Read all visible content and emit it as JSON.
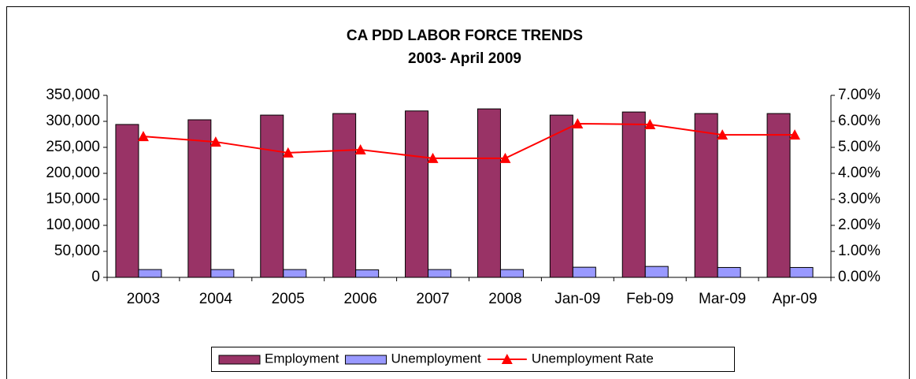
{
  "chart_data": {
    "type": "bar",
    "title": "CA PDD LABOR FORCE TRENDS",
    "subtitle": "2003- April  2009",
    "categories": [
      "2003",
      "2004",
      "2005",
      "2006",
      "2007",
      "2008",
      "Jan-09",
      "Feb-09",
      "Mar-09",
      "Apr-09"
    ],
    "series": [
      {
        "name": "Employment",
        "color": "#993366",
        "values": [
          294000,
          303000,
          312000,
          315000,
          320000,
          324000,
          312000,
          318000,
          315000,
          315000
        ]
      },
      {
        "name": "Unemployment",
        "color": "#9999ff",
        "values": [
          15000,
          15000,
          15000,
          14500,
          15000,
          15000,
          19500,
          21000,
          19000,
          19000
        ]
      },
      {
        "name": "Unemployment Rate",
        "color": "#ff0000",
        "type": "line",
        "axis": "y2",
        "values": [
          5.42,
          5.21,
          4.79,
          4.91,
          4.58,
          4.58,
          5.91,
          5.88,
          5.48,
          5.48
        ]
      }
    ],
    "ylim": [
      0,
      350000
    ],
    "yticks": [
      0,
      {
        "value": 50000,
        "label": "50,000"
      },
      {
        "value": 100000,
        "label": "100,000"
      },
      {
        "value": 150000,
        "label": "150,000"
      },
      {
        "value": 200000,
        "label": "200,000"
      },
      {
        "value": 250000,
        "label": "250,000"
      },
      {
        "value": 300000,
        "label": "300,000"
      },
      {
        "value": 350000,
        "label": "350,000"
      }
    ],
    "y2lim": [
      0,
      7
    ],
    "y2ticks": [
      {
        "value": 0,
        "label": "0.00%"
      },
      {
        "value": 1,
        "label": "1.00%"
      },
      {
        "value": 2,
        "label": "2.00%"
      },
      {
        "value": 3,
        "label": "3.00%"
      },
      {
        "value": 4,
        "label": "4.00%"
      },
      {
        "value": 5,
        "label": "5.00%"
      },
      {
        "value": 6,
        "label": "6.00%"
      },
      {
        "value": 7,
        "label": "7.00%"
      }
    ],
    "grid": false,
    "legend": "bottom"
  }
}
